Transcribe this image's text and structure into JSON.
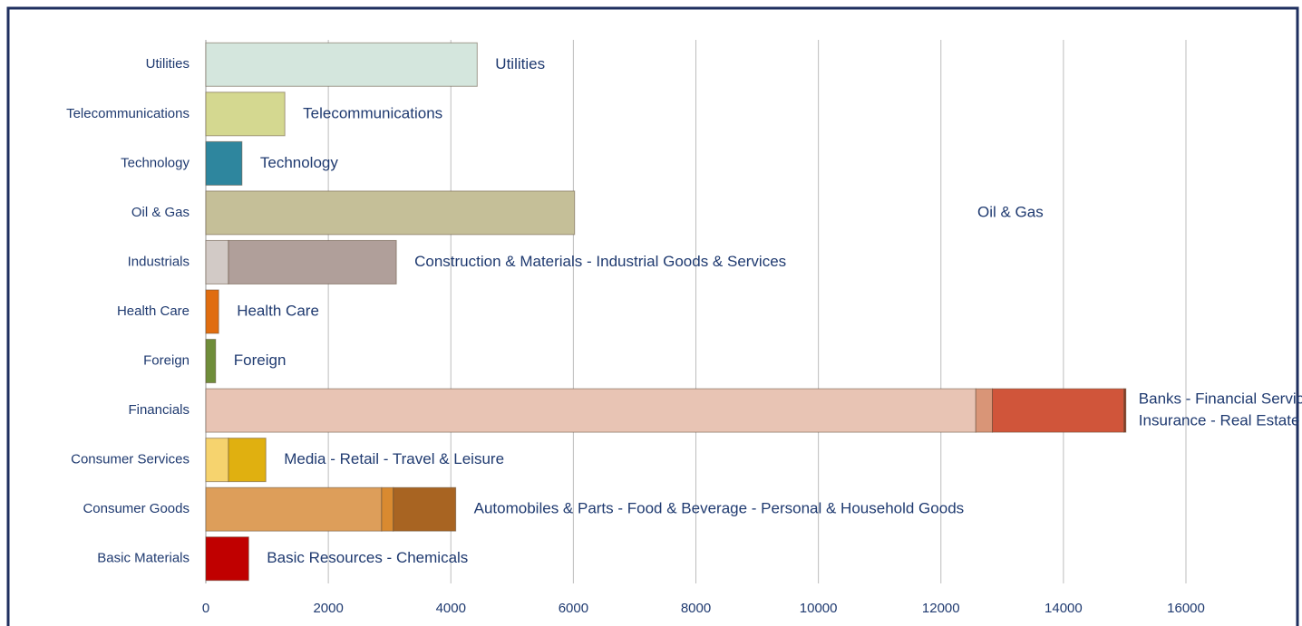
{
  "chart_data": {
    "type": "stacked-barh",
    "categories": [
      "Utilities",
      "Telecommunications",
      "Technology",
      "Oil & Gas",
      "Industrials",
      "Health Care",
      "Foreign",
      "Financials",
      "Consumer Services",
      "Consumer Goods",
      "Basic Materials"
    ],
    "bar_labels": [
      [
        "Utilities"
      ],
      [
        "Telecommunications"
      ],
      [
        "Technology"
      ],
      [
        "Oil & Gas"
      ],
      [
        "Construction & Materials - Industrial Goods & Services"
      ],
      [
        "Health Care"
      ],
      [
        "Foreign"
      ],
      [
        "Banks - Financial Services",
        "Insurance - Real Estate"
      ],
      [
        "Media - Retail - Travel & Leisure"
      ],
      [
        "Automobiles & Parts - Food & Beverage  - Personal & Household Goods"
      ],
      [
        "Basic Resources - Chemicals"
      ]
    ],
    "stacks": [
      [
        {
          "value": 4430,
          "color": "#d4e6dd"
        }
      ],
      [
        {
          "value": 1290,
          "color": "#d4d890"
        }
      ],
      [
        {
          "value": 590,
          "color": "#2e869e"
        }
      ],
      [
        {
          "value": 6020,
          "color": "#c5bf98"
        }
      ],
      [
        {
          "value": 370,
          "color": "#d2cac6"
        },
        {
          "value": 2740,
          "color": "#b09f9a"
        }
      ],
      [
        {
          "value": 210,
          "color": "#e06d10"
        }
      ],
      [
        {
          "value": 160,
          "color": "#6f8d3a"
        }
      ],
      [
        {
          "value": 12570,
          "color": "#e8c4b4"
        },
        {
          "value": 270,
          "color": "#d99577"
        },
        {
          "value": 2150,
          "color": "#d0553a"
        },
        {
          "value": 30,
          "color": "#8b3a20"
        }
      ],
      [
        {
          "value": 370,
          "color": "#f6d36e"
        },
        {
          "value": 610,
          "color": "#e0b010"
        }
      ],
      [
        {
          "value": 2870,
          "color": "#dd9e5a"
        },
        {
          "value": 190,
          "color": "#d98a30"
        },
        {
          "value": 1020,
          "color": "#a86422"
        }
      ],
      [
        {
          "value": 700,
          "color": "#c00000"
        }
      ]
    ],
    "xlim": [
      0,
      16000
    ],
    "xticks": [
      0,
      2000,
      4000,
      6000,
      8000,
      10000,
      12000,
      14000,
      16000
    ],
    "grid": true
  }
}
